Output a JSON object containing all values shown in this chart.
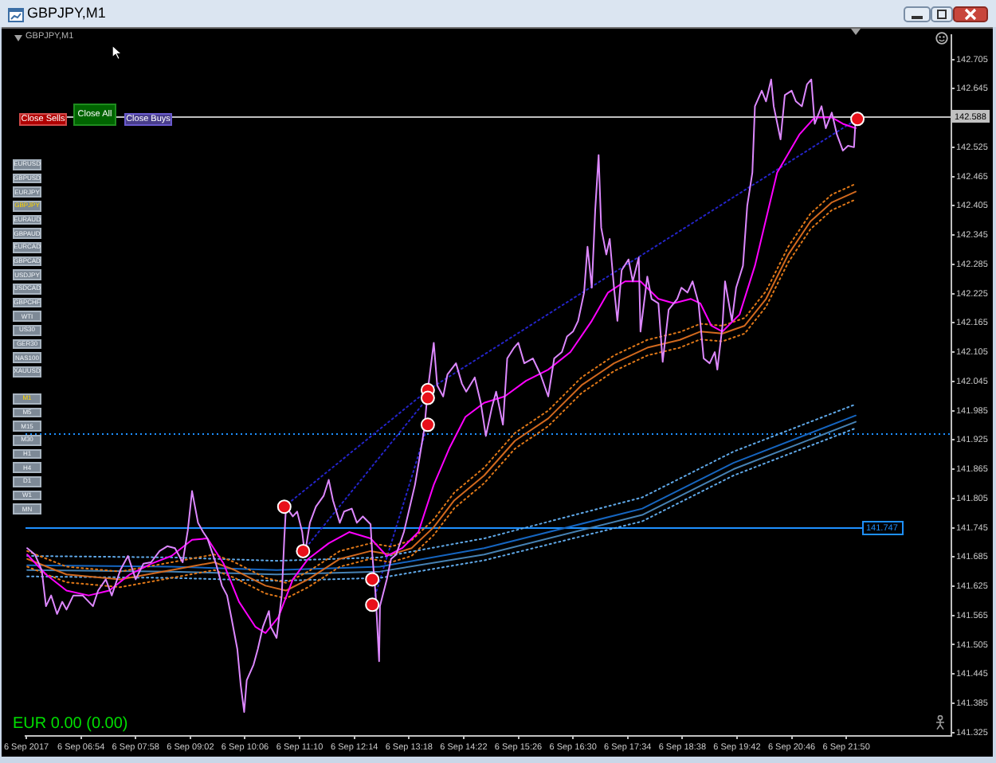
{
  "chart_data": {
    "type": "line",
    "title": "GBPJPY,M1",
    "subtitle": "GBPJPY,M1",
    "series": [
      {
        "type": "scatter",
        "marker": "circle",
        "color": "#e8101a",
        "x": [
          "2017-09-06T10:52",
          "2017-09-06T11:14",
          "2017-09-06T12:35",
          "2017-09-06T12:35",
          "2017-09-06T13:40",
          "2017-09-06T13:40",
          "2017-09-06T13:40",
          "2017-09-06T22:03"
        ],
        "values": [
          141.788,
          141.697,
          141.639,
          141.587,
          142.027,
          142.011,
          141.956,
          142.583
        ]
      },
      {
        "color": "#dd88ff",
        "x": [
          "2017-09-06T05:51",
          "2017-09-06T06:00",
          "2017-09-06T06:08",
          "2017-09-06T06:13",
          "2017-09-06T06:19",
          "2017-09-06T06:26",
          "2017-09-06T06:32",
          "2017-09-06T06:37",
          "2017-09-06T06:45",
          "2017-09-06T06:56",
          "2017-09-06T07:08",
          "2017-09-06T07:14",
          "2017-09-06T07:23",
          "2017-09-06T07:30",
          "2017-09-06T07:40",
          "2017-09-06T07:49",
          "2017-09-06T07:58",
          "2017-09-06T08:07",
          "2017-09-06T08:16",
          "2017-09-06T08:26",
          "2017-09-06T08:35",
          "2017-09-06T08:44",
          "2017-09-06T08:53",
          "2017-09-06T08:59",
          "2017-09-06T09:04",
          "2017-09-06T09:11",
          "2017-09-06T09:17",
          "2017-09-06T09:22",
          "2017-09-06T09:32",
          "2017-09-06T09:39",
          "2017-09-06T09:45",
          "2017-09-06T09:50",
          "2017-09-06T09:57",
          "2017-09-06T10:01",
          "2017-09-06T10:05",
          "2017-09-06T10:08",
          "2017-09-06T10:16",
          "2017-09-06T10:21",
          "2017-09-06T10:27",
          "2017-09-06T10:34",
          "2017-09-06T10:36",
          "2017-09-06T10:43",
          "2017-09-06T10:49",
          "2017-09-06T10:52",
          "2017-09-06T10:54",
          "2017-09-06T11:02",
          "2017-09-06T11:07",
          "2017-09-06T11:13",
          "2017-09-06T11:16",
          "2017-09-06T11:22",
          "2017-09-06T11:29",
          "2017-09-06T11:38",
          "2017-09-06T11:44",
          "2017-09-06T11:49",
          "2017-09-06T11:57",
          "2017-09-06T12:02",
          "2017-09-06T12:11",
          "2017-09-06T12:17",
          "2017-09-06T12:24",
          "2017-09-06T12:33",
          "2017-09-06T12:35",
          "2017-09-06T12:39",
          "2017-09-06T12:43",
          "2017-09-06T12:44",
          "2017-09-06T12:52",
          "2017-09-06T12:57",
          "2017-09-06T13:03",
          "2017-09-06T13:12",
          "2017-09-06T13:19",
          "2017-09-06T13:25",
          "2017-09-06T13:30",
          "2017-09-06T13:36",
          "2017-09-06T13:40",
          "2017-09-06T13:47",
          "2017-09-06T13:51",
          "2017-09-06T13:58",
          "2017-09-06T14:03",
          "2017-09-06T14:13",
          "2017-09-06T14:20",
          "2017-09-06T14:25",
          "2017-09-06T14:35",
          "2017-09-06T14:42",
          "2017-09-06T14:48",
          "2017-09-06T14:55",
          "2017-09-06T15:00",
          "2017-09-06T15:08",
          "2017-09-06T15:13",
          "2017-09-06T15:21",
          "2017-09-06T15:26",
          "2017-09-06T15:33",
          "2017-09-06T15:43",
          "2017-09-06T15:52",
          "2017-09-06T16:01",
          "2017-09-06T16:08",
          "2017-09-06T16:17",
          "2017-09-06T16:23",
          "2017-09-06T16:30",
          "2017-09-06T16:36",
          "2017-09-06T16:43",
          "2017-09-06T16:47",
          "2017-09-06T16:52",
          "2017-09-06T16:56",
          "2017-09-06T17:00",
          "2017-09-06T17:03",
          "2017-09-06T17:09",
          "2017-09-06T17:13",
          "2017-09-06T17:18",
          "2017-09-06T17:22",
          "2017-09-06T17:27",
          "2017-09-06T17:35",
          "2017-09-06T17:40",
          "2017-09-06T17:47",
          "2017-09-06T17:49",
          "2017-09-06T17:57",
          "2017-09-06T18:02",
          "2017-09-06T18:10",
          "2017-09-06T18:15",
          "2017-09-06T18:22",
          "2017-09-06T18:32",
          "2017-09-06T18:37",
          "2017-09-06T18:44",
          "2017-09-06T18:50",
          "2017-09-06T18:57",
          "2017-09-06T19:03",
          "2017-09-06T19:10",
          "2017-09-06T19:16",
          "2017-09-06T19:19",
          "2017-09-06T19:25",
          "2017-09-06T19:28",
          "2017-09-06T19:36",
          "2017-09-06T19:41",
          "2017-09-06T19:49",
          "2017-09-06T19:54",
          "2017-09-06T20:00",
          "2017-09-06T20:03",
          "2017-09-06T20:11",
          "2017-09-06T20:16",
          "2017-09-06T20:22",
          "2017-09-06T20:25",
          "2017-09-06T20:33",
          "2017-09-06T20:38",
          "2017-09-06T20:46",
          "2017-09-06T20:51",
          "2017-09-06T20:58",
          "2017-09-06T21:04",
          "2017-09-06T21:09",
          "2017-09-06T21:13",
          "2017-09-06T21:21",
          "2017-09-06T21:26",
          "2017-09-06T21:33",
          "2017-09-06T21:39",
          "2017-09-06T21:46",
          "2017-09-06T21:52",
          "2017-09-06T21:59",
          "2017-09-06T22:01"
        ],
        "values": [
          141.703,
          141.69,
          141.658,
          141.584,
          141.606,
          141.568,
          141.593,
          141.577,
          141.606,
          141.606,
          141.584,
          141.616,
          141.639,
          141.606,
          141.658,
          141.687,
          141.639,
          141.671,
          141.674,
          141.697,
          141.707,
          141.703,
          141.674,
          141.739,
          141.82,
          141.755,
          141.736,
          141.723,
          141.671,
          141.626,
          141.606,
          141.561,
          141.496,
          141.422,
          141.367,
          141.432,
          141.464,
          141.496,
          141.542,
          141.574,
          141.542,
          141.519,
          141.606,
          141.723,
          141.788,
          141.768,
          141.778,
          141.736,
          141.69,
          141.755,
          141.788,
          141.81,
          141.843,
          141.801,
          141.755,
          141.778,
          141.784,
          141.755,
          141.768,
          141.752,
          141.69,
          141.606,
          141.471,
          141.584,
          141.639,
          141.681,
          141.69,
          141.736,
          141.788,
          141.833,
          141.885,
          141.949,
          142.027,
          142.124,
          142.037,
          142.014,
          142.059,
          142.082,
          142.04,
          142.024,
          142.053,
          142.001,
          141.933,
          141.991,
          142.024,
          141.956,
          142.092,
          142.114,
          142.124,
          142.082,
          142.092,
          142.059,
          142.014,
          142.092,
          142.105,
          142.137,
          142.147,
          142.169,
          142.227,
          142.321,
          142.237,
          142.396,
          142.509,
          142.36,
          142.305,
          142.337,
          142.237,
          142.169,
          142.273,
          142.295,
          142.25,
          142.299,
          142.147,
          142.26,
          142.214,
          142.205,
          142.085,
          142.192,
          142.214,
          142.237,
          142.227,
          142.25,
          142.205,
          142.092,
          142.082,
          142.105,
          142.069,
          142.159,
          142.25,
          142.169,
          142.237,
          142.282,
          142.405,
          142.473,
          142.609,
          142.641,
          142.619,
          142.664,
          142.609,
          142.541,
          142.632,
          142.641,
          142.619,
          142.609,
          142.654,
          142.664,
          142.573,
          142.609,
          142.564,
          142.596,
          142.551,
          142.518,
          142.528,
          142.525,
          142.586
        ]
      },
      {
        "color": "#ff00ff",
        "x": [
          "2017-09-06T05:51",
          "2017-09-06T06:13",
          "2017-09-06T06:37",
          "2017-09-06T07:03",
          "2017-09-06T07:27",
          "2017-09-06T07:51",
          "2017-09-06T08:16",
          "2017-09-06T08:40",
          "2017-09-06T09:04",
          "2017-09-06T09:22",
          "2017-09-06T09:41",
          "2017-09-06T09:59",
          "2017-09-06T10:18",
          "2017-09-06T10:30",
          "2017-09-06T10:45",
          "2017-09-06T11:02",
          "2017-09-06T11:20",
          "2017-09-06T11:44",
          "2017-09-06T12:08",
          "2017-09-06T12:33",
          "2017-09-06T12:52",
          "2017-09-06T13:10",
          "2017-09-06T13:29",
          "2017-09-06T13:47",
          "2017-09-06T14:05",
          "2017-09-06T14:24",
          "2017-09-06T14:46",
          "2017-09-06T15:10",
          "2017-09-06T15:35",
          "2017-09-06T16:01",
          "2017-09-06T16:27",
          "2017-09-06T16:52",
          "2017-09-06T17:11",
          "2017-09-06T17:31",
          "2017-09-06T17:49",
          "2017-09-06T18:10",
          "2017-09-06T18:28",
          "2017-09-06T18:48",
          "2017-09-06T18:59",
          "2017-09-06T19:12",
          "2017-09-06T19:25",
          "2017-09-06T19:45",
          "2017-09-06T20:03",
          "2017-09-06T20:29",
          "2017-09-06T20:55",
          "2017-09-06T21:13",
          "2017-09-06T21:33",
          "2017-09-06T21:46",
          "2017-09-06T22:01"
        ],
        "values": [
          141.69,
          141.649,
          141.616,
          141.606,
          141.616,
          141.649,
          141.671,
          141.687,
          141.72,
          141.723,
          141.671,
          141.593,
          141.542,
          141.529,
          141.561,
          141.639,
          141.681,
          141.713,
          141.736,
          141.723,
          141.687,
          141.703,
          141.736,
          141.833,
          141.907,
          141.972,
          142.001,
          142.014,
          142.046,
          142.069,
          142.105,
          142.169,
          142.227,
          142.25,
          142.25,
          142.214,
          142.205,
          142.214,
          142.205,
          142.159,
          142.147,
          142.182,
          142.282,
          142.473,
          142.551,
          142.586,
          142.586,
          142.573,
          142.564
        ]
      },
      {
        "color": "#d2691e",
        "x": [
          "2017-09-06T05:51",
          "2017-09-06T06:37",
          "2017-09-06T07:40",
          "2017-09-06T08:40",
          "2017-09-06T09:30",
          "2017-09-06T09:54",
          "2017-09-06T10:30",
          "2017-09-06T10:54",
          "2017-09-06T11:20",
          "2017-09-06T11:57",
          "2017-09-06T12:33",
          "2017-09-06T12:57",
          "2017-09-06T13:21",
          "2017-09-06T13:47",
          "2017-09-06T14:11",
          "2017-09-06T14:46",
          "2017-09-06T15:22",
          "2017-09-06T16:01",
          "2017-09-06T16:40",
          "2017-09-06T17:18",
          "2017-09-06T17:57",
          "2017-09-06T18:35",
          "2017-09-06T18:59",
          "2017-09-06T19:25",
          "2017-09-06T19:51",
          "2017-09-06T20:16",
          "2017-09-06T20:42",
          "2017-09-06T21:08",
          "2017-09-06T21:33",
          "2017-09-06T22:01"
        ],
        "values": [
          141.681,
          141.649,
          141.639,
          141.658,
          141.674,
          141.658,
          141.626,
          141.616,
          141.639,
          141.681,
          141.697,
          141.69,
          141.703,
          141.746,
          141.801,
          141.852,
          141.923,
          141.969,
          142.037,
          142.082,
          142.114,
          142.13,
          142.147,
          142.143,
          142.159,
          142.214,
          142.305,
          142.373,
          142.412,
          142.434
        ]
      },
      {
        "color": "#e07818",
        "line_style": "dotted",
        "x": [
          "2017-09-06T05:51",
          "2017-09-06T06:37",
          "2017-09-06T07:40",
          "2017-09-06T08:40",
          "2017-09-06T09:30",
          "2017-09-06T09:54",
          "2017-09-06T10:30",
          "2017-09-06T10:54",
          "2017-09-06T11:20",
          "2017-09-06T11:57",
          "2017-09-06T12:33",
          "2017-09-06T12:57",
          "2017-09-06T13:21",
          "2017-09-06T13:47",
          "2017-09-06T14:11",
          "2017-09-06T14:46",
          "2017-09-06T15:22",
          "2017-09-06T16:01",
          "2017-09-06T16:40",
          "2017-09-06T17:18",
          "2017-09-06T17:57",
          "2017-09-06T18:35",
          "2017-09-06T18:59",
          "2017-09-06T19:25",
          "2017-09-06T19:51",
          "2017-09-06T20:16",
          "2017-09-06T20:42",
          "2017-09-06T21:08",
          "2017-09-06T21:33",
          "2017-09-06T22:01"
        ],
        "values": [
          141.697,
          141.665,
          141.655,
          141.674,
          141.69,
          141.674,
          141.642,
          141.632,
          141.655,
          141.697,
          141.713,
          141.706,
          141.719,
          141.762,
          141.817,
          141.868,
          141.939,
          141.985,
          142.053,
          142.098,
          142.13,
          142.146,
          142.163,
          142.159,
          142.175,
          142.23,
          142.321,
          142.389,
          142.428,
          142.45
        ]
      },
      {
        "color": "#e07818",
        "line_style": "dotted",
        "x": [
          "2017-09-06T05:51",
          "2017-09-06T06:37",
          "2017-09-06T07:40",
          "2017-09-06T08:40",
          "2017-09-06T09:30",
          "2017-09-06T09:54",
          "2017-09-06T10:30",
          "2017-09-06T10:54",
          "2017-09-06T11:20",
          "2017-09-06T11:57",
          "2017-09-06T12:33",
          "2017-09-06T12:57",
          "2017-09-06T13:21",
          "2017-09-06T13:47",
          "2017-09-06T14:11",
          "2017-09-06T14:46",
          "2017-09-06T15:22",
          "2017-09-06T16:01",
          "2017-09-06T16:40",
          "2017-09-06T17:18",
          "2017-09-06T17:57",
          "2017-09-06T18:35",
          "2017-09-06T18:59",
          "2017-09-06T19:25",
          "2017-09-06T19:51",
          "2017-09-06T20:16",
          "2017-09-06T20:42",
          "2017-09-06T21:08",
          "2017-09-06T21:33",
          "2017-09-06T22:01"
        ],
        "values": [
          141.665,
          141.633,
          141.623,
          141.642,
          141.658,
          141.642,
          141.61,
          141.6,
          141.623,
          141.665,
          141.681,
          141.674,
          141.687,
          141.73,
          141.785,
          141.836,
          141.907,
          141.953,
          142.021,
          142.066,
          142.098,
          142.114,
          142.131,
          142.127,
          142.143,
          142.198,
          142.289,
          142.357,
          142.396,
          142.418
        ]
      },
      {
        "color": "#1565c0",
        "x": [
          "2017-09-06T05:51",
          "2017-09-06T08:40",
          "2017-09-06T10:43",
          "2017-09-06T12:44",
          "2017-09-06T14:46",
          "2017-09-06T17:51",
          "2017-09-06T19:38",
          "2017-09-06T22:01"
        ],
        "values": [
          141.668,
          141.665,
          141.658,
          141.665,
          141.703,
          141.784,
          141.878,
          141.975
        ]
      },
      {
        "color": "#4682b4",
        "x": [
          "2017-09-06T05:51",
          "2017-09-06T08:40",
          "2017-09-06T10:43",
          "2017-09-06T12:44",
          "2017-09-06T14:46",
          "2017-09-06T17:51",
          "2017-09-06T19:38",
          "2017-09-06T22:01"
        ],
        "values": [
          141.658,
          141.655,
          141.649,
          141.655,
          141.69,
          141.771,
          141.865,
          141.962
        ]
      },
      {
        "color": "#5fa8e8",
        "line_style": "dotted",
        "x": [
          "2017-09-06T05:51",
          "2017-09-06T08:40",
          "2017-09-06T10:43",
          "2017-09-06T12:44",
          "2017-09-06T14:46",
          "2017-09-06T17:51",
          "2017-09-06T19:38",
          "2017-09-06T22:01"
        ],
        "values": [
          141.687,
          141.684,
          141.677,
          141.684,
          141.723,
          141.807,
          141.901,
          141.998
        ]
      },
      {
        "color": "#5fa8e8",
        "line_style": "dotted",
        "x": [
          "2017-09-06T05:51",
          "2017-09-06T08:40",
          "2017-09-06T10:43",
          "2017-09-06T12:44",
          "2017-09-06T14:46",
          "2017-09-06T17:51",
          "2017-09-06T19:38",
          "2017-09-06T22:01"
        ],
        "values": [
          141.645,
          141.642,
          141.636,
          141.642,
          141.678,
          141.758,
          141.852,
          141.949
        ]
      },
      {
        "color": "#2424c8",
        "line_style": "dotted",
        "x": [
          "2017-09-06T10:52",
          "2017-09-06T13:40",
          "2017-09-06T22:03"
        ],
        "values": [
          141.788,
          142.027,
          142.583
        ]
      },
      {
        "color": "#2424c8",
        "line_style": "dotted",
        "x": [
          "2017-09-06T11:14",
          "2017-09-06T13:40"
        ],
        "values": [
          141.697,
          142.011
        ]
      },
      {
        "color": "#2424c8",
        "line_style": "dotted",
        "x": [
          "2017-09-06T12:35",
          "2017-09-06T13:40"
        ],
        "values": [
          141.587,
          141.956
        ]
      }
    ],
    "xlim": [
      "2017-09-06T05:49",
      "2017-09-06T23:53"
    ],
    "xticks": [
      {
        "value": "2017-09-06T05:50",
        "label": "6 Sep 2017"
      },
      {
        "value": "2017-09-06T06:54",
        "label": "6 Sep 06:54"
      },
      {
        "value": "2017-09-06T07:58",
        "label": "6 Sep 07:58"
      },
      {
        "value": "2017-09-06T09:02",
        "label": "6 Sep 09:02"
      },
      {
        "value": "2017-09-06T10:06",
        "label": "6 Sep 10:06"
      },
      {
        "value": "2017-09-06T11:10",
        "label": "6 Sep 11:10"
      },
      {
        "value": "2017-09-06T12:14",
        "label": "6 Sep 12:14"
      },
      {
        "value": "2017-09-06T13:18",
        "label": "6 Sep 13:18"
      },
      {
        "value": "2017-09-06T14:22",
        "label": "6 Sep 14:22"
      },
      {
        "value": "2017-09-06T15:26",
        "label": "6 Sep 15:26"
      },
      {
        "value": "2017-09-06T16:30",
        "label": "6 Sep 16:30"
      },
      {
        "value": "2017-09-06T17:34",
        "label": "6 Sep 17:34"
      },
      {
        "value": "2017-09-06T18:38",
        "label": "6 Sep 18:38"
      },
      {
        "value": "2017-09-06T19:42",
        "label": "6 Sep 19:42"
      },
      {
        "value": "2017-09-06T20:46",
        "label": "6 Sep 20:46"
      },
      {
        "value": "2017-09-06T21:50",
        "label": "6 Sep 21:50"
      }
    ],
    "ylim": [
      141.318,
      142.755
    ],
    "yticks": [
      142.705,
      142.645,
      142.525,
      142.465,
      142.405,
      142.345,
      142.285,
      142.225,
      142.165,
      142.105,
      142.045,
      141.985,
      141.925,
      141.865,
      141.805,
      141.745,
      141.685,
      141.625,
      141.565,
      141.505,
      141.445,
      141.385,
      141.325
    ],
    "grid": false,
    "legend": false,
    "marker": "none",
    "ref_lines": [
      {
        "axis": "y",
        "value": 142.588,
        "label": "142.588",
        "color": "#c0c0c0"
      },
      {
        "axis": "y",
        "value": 141.747,
        "label": "141.747",
        "color": "#1e90ff"
      },
      {
        "axis": "y",
        "value": 141.94,
        "color": "#1e90ff",
        "line_style": "dotted"
      }
    ],
    "annotations": [
      "Close Sells",
      "Close All",
      "Close Buys",
      "EURUSD",
      "GBPUSD",
      "EURJPY",
      "GBPJPY",
      "EURAUD",
      "GBPAUD",
      "EURCAD",
      "GBPCAD",
      "USDJPY",
      "USDCAD",
      "GBPCHF",
      "WTI",
      "US30",
      "GER30",
      "NAS100",
      "XAUUSD",
      "M1",
      "M5",
      "M15",
      "M30",
      "H1",
      "H4",
      "D1",
      "W1",
      "MN",
      "EUR 0.00 (0.00)"
    ]
  }
}
